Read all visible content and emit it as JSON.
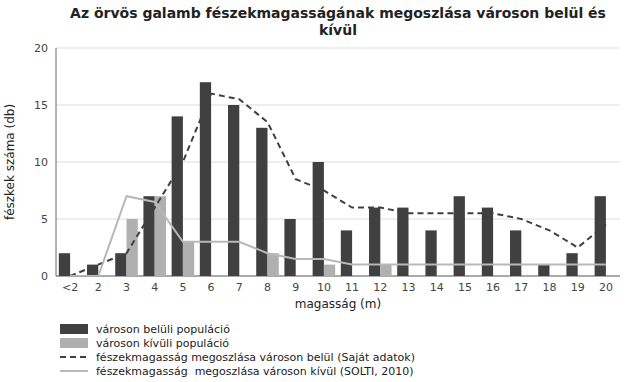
{
  "chart_data": {
    "type": "bar",
    "title": "Az örvös galamb fészekmagasságának megoszlása városon belül és\nkívül",
    "x_label": "magasság (m)",
    "y_label": "fészkek száma (db)",
    "categories": [
      "<2",
      "2",
      "3",
      "4",
      "5",
      "6",
      "7",
      "8",
      "9",
      "10",
      "11",
      "12",
      "13",
      "14",
      "15",
      "16",
      "17",
      "18",
      "19",
      "20"
    ],
    "series": [
      {
        "name": "városon belüli populáció",
        "type": "bar",
        "color": "#404040",
        "values": [
          2,
          1,
          2,
          7,
          14,
          17,
          15,
          13,
          5,
          10,
          4,
          6,
          6,
          4,
          7,
          6,
          4,
          1,
          2,
          7
        ]
      },
      {
        "name": "városon kívüli populáció",
        "type": "bar",
        "color": "#b0b0b0",
        "values": [
          0,
          0,
          5,
          7,
          3,
          0,
          0,
          2,
          0,
          1,
          0,
          1,
          0,
          0,
          0,
          0,
          0,
          0,
          0,
          0
        ]
      },
      {
        "name": "fészekmagasság megoszlása városon belül (Saját adatok)",
        "type": "line",
        "color": "#404040",
        "line_style": "dashed",
        "values": [
          0,
          1,
          2,
          6,
          10,
          16,
          15.5,
          13.5,
          8.5,
          7.5,
          6,
          6,
          5.5,
          5.5,
          5.5,
          5.5,
          5,
          4,
          2.5,
          4.5
        ]
      },
      {
        "name": "fészekmagasság  megoszlása városon kívül (SOLTI, 2010)",
        "type": "line",
        "color": "#b8b8b8",
        "line_style": "solid",
        "values": [
          0,
          0,
          7,
          6.5,
          3,
          3,
          3,
          2,
          1.5,
          1.5,
          1,
          1,
          1,
          1,
          1,
          1,
          1,
          1,
          1,
          1
        ]
      }
    ],
    "ylim": [
      0,
      20
    ],
    "yticks": [
      0,
      5,
      10,
      15,
      20
    ],
    "grid": true,
    "legend": "bottom"
  }
}
